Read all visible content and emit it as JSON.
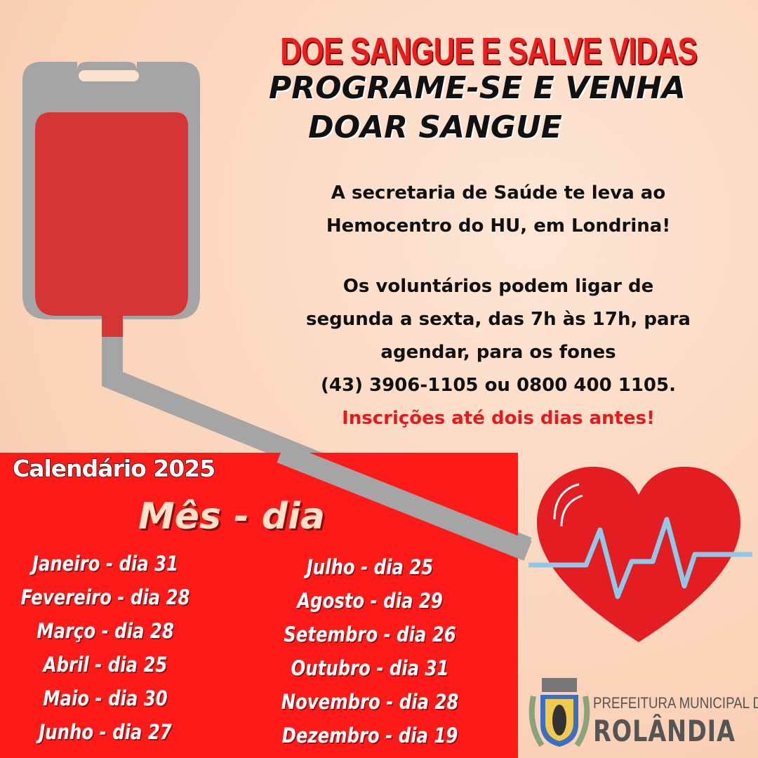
{
  "headline": "DOE SANGUE E SALVE VIDAS",
  "subheadline_1": "PROGRAME-SE E VENHA",
  "subheadline_2": "DOAR SANGUE",
  "info": {
    "line1": "A secretaria de Saúde te leva ao",
    "line2": "Hemocentro do HU, em Londrina!",
    "line3": "Os voluntários podem ligar de",
    "line4": "segunda a sexta, das 7h às 17h, para",
    "line5": "agendar, para os fones",
    "line6": "(43) 3906-1105 ou 0800 400 1105.",
    "deadline": "Inscrições até dois dias antes!"
  },
  "calendar": {
    "title": "Calendário 2025",
    "header": "Mês - dia",
    "left": [
      "Janeiro - dia 31",
      "Fevereiro - dia 28",
      "Março - dia 28",
      "Abril - dia 25",
      "Maio - dia 30",
      "Junho - dia 27"
    ],
    "right": [
      "Julho - dia 25",
      "Agosto - dia 29",
      "Setembro  - dia 26",
      "Outubro - dia 31",
      "Novembro - dia  28",
      "Dezembro - dia 19"
    ]
  },
  "logo": {
    "line1": "PREFEITURA MUNICIPAL DE",
    "line2": "ROLÂNDIA"
  },
  "colors": {
    "red": "#ff1a1a",
    "title_red": "#ee1c1c",
    "deadline_red": "#e8191c",
    "bag_gray": "#a5a5a5",
    "blood": "#d63535",
    "ecg_blue": "#8ec9ea"
  }
}
